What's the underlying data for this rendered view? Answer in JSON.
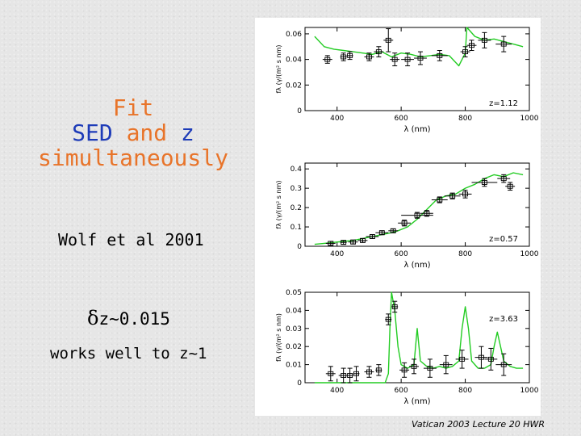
{
  "slide": {
    "title_fit": "Fit",
    "title_sed": "SED",
    "title_and": "and",
    "title_z": "z",
    "title_simultaneously": "simultaneously",
    "citation": "Wolf et al 2001",
    "delta_symbol": "δ",
    "delta_text": "z~0.015",
    "works_note": "works well to z~1",
    "footer": "Vatican 2003 Lecture 20 HWR"
  },
  "colors": {
    "title_blue": "#1d3bb8",
    "title_orange": "#e8742a",
    "model_green": "#22cc22",
    "data_black": "#000000"
  },
  "chart_data": [
    {
      "type": "line",
      "redshift_label": "z=1.12",
      "xlabel": "λ (nm)",
      "ylabel": "fλ (γ/(m² s nm)",
      "xlim": [
        300,
        1000
      ],
      "ylim": [
        0,
        0.065
      ],
      "xticks": [
        "400",
        "600",
        "800",
        "1000"
      ],
      "yticks": [
        "0",
        "0.02",
        "0.04",
        "0.06"
      ],
      "model_series": {
        "name": "",
        "x": [
          330,
          360,
          390,
          420,
          450,
          480,
          510,
          540,
          570,
          600,
          630,
          660,
          690,
          720,
          750,
          780,
          800,
          805,
          830,
          860,
          890,
          920,
          950,
          980
        ],
        "y": [
          0.058,
          0.05,
          0.048,
          0.047,
          0.046,
          0.045,
          0.044,
          0.046,
          0.042,
          0.045,
          0.044,
          0.042,
          0.043,
          0.044,
          0.043,
          0.035,
          0.045,
          0.065,
          0.058,
          0.055,
          0.056,
          0.054,
          0.052,
          0.05
        ]
      },
      "observations": {
        "x": [
          370,
          420,
          440,
          500,
          530,
          560,
          580,
          620,
          660,
          720,
          800,
          820,
          860,
          920
        ],
        "y": [
          0.04,
          0.042,
          0.043,
          0.042,
          0.046,
          0.055,
          0.04,
          0.04,
          0.041,
          0.043,
          0.046,
          0.051,
          0.055,
          0.052
        ],
        "x_err": [
          15,
          10,
          10,
          15,
          15,
          15,
          15,
          20,
          20,
          25,
          15,
          15,
          20,
          25
        ],
        "y_err": [
          0.003,
          0.003,
          0.003,
          0.003,
          0.004,
          0.009,
          0.005,
          0.005,
          0.005,
          0.004,
          0.004,
          0.004,
          0.006,
          0.006
        ]
      }
    },
    {
      "type": "line",
      "redshift_label": "z=0.57",
      "xlabel": "λ (nm)",
      "ylabel": "fλ (γ/(m² s nm)",
      "xlim": [
        300,
        1000
      ],
      "ylim": [
        0,
        0.43
      ],
      "xticks": [
        "400",
        "600",
        "800",
        "1000"
      ],
      "yticks": [
        "0",
        "0.1",
        "0.2",
        "0.3",
        "0.4"
      ],
      "model_series": {
        "name": "",
        "x": [
          330,
          360,
          390,
          420,
          450,
          480,
          510,
          540,
          570,
          590,
          620,
          650,
          680,
          710,
          740,
          770,
          800,
          830,
          860,
          890,
          920,
          950,
          980
        ],
        "y": [
          0.01,
          0.015,
          0.02,
          0.025,
          0.03,
          0.04,
          0.05,
          0.06,
          0.07,
          0.08,
          0.1,
          0.14,
          0.19,
          0.24,
          0.26,
          0.27,
          0.3,
          0.32,
          0.35,
          0.37,
          0.36,
          0.38,
          0.37
        ]
      },
      "observations": {
        "x": [
          380,
          420,
          450,
          480,
          510,
          540,
          575,
          610,
          650,
          680,
          720,
          760,
          800,
          860,
          920,
          940
        ],
        "y": [
          0.015,
          0.02,
          0.022,
          0.03,
          0.05,
          0.07,
          0.08,
          0.12,
          0.16,
          0.17,
          0.24,
          0.26,
          0.27,
          0.33,
          0.35,
          0.31
        ],
        "x_err": [
          15,
          10,
          15,
          15,
          20,
          20,
          15,
          20,
          50,
          20,
          25,
          25,
          20,
          40,
          20,
          15
        ],
        "y_err": [
          0.01,
          0.01,
          0.01,
          0.01,
          0.01,
          0.01,
          0.01,
          0.015,
          0.015,
          0.015,
          0.015,
          0.015,
          0.02,
          0.02,
          0.02,
          0.02
        ]
      }
    },
    {
      "type": "line",
      "redshift_label": "z=3.63",
      "xlabel": "λ (nm)",
      "ylabel": "fλ (γ/(m² s nm)",
      "xlim": [
        300,
        1000
      ],
      "ylim": [
        0,
        0.05
      ],
      "xticks": [
        "400",
        "600",
        "800",
        "1000"
      ],
      "yticks": [
        "0",
        "0.01",
        "0.02",
        "0.03",
        "0.04",
        "0.05"
      ],
      "model_series": {
        "name": "",
        "x": [
          330,
          400,
          480,
          550,
          560,
          565,
          570,
          580,
          590,
          600,
          620,
          640,
          650,
          660,
          680,
          700,
          720,
          740,
          760,
          780,
          790,
          800,
          810,
          820,
          840,
          860,
          880,
          890,
          900,
          910,
          920,
          940,
          960,
          980
        ],
        "y": [
          0.0,
          0.0,
          0.0,
          0.0,
          0.005,
          0.03,
          0.05,
          0.04,
          0.02,
          0.01,
          0.008,
          0.01,
          0.03,
          0.012,
          0.009,
          0.008,
          0.009,
          0.008,
          0.009,
          0.012,
          0.03,
          0.042,
          0.03,
          0.012,
          0.008,
          0.008,
          0.01,
          0.02,
          0.028,
          0.02,
          0.012,
          0.009,
          0.008,
          0.008
        ]
      },
      "observations": {
        "x": [
          380,
          420,
          440,
          460,
          500,
          530,
          560,
          580,
          610,
          640,
          690,
          740,
          790,
          850,
          880,
          920
        ],
        "y": [
          0.005,
          0.004,
          0.004,
          0.005,
          0.006,
          0.007,
          0.035,
          0.042,
          0.007,
          0.009,
          0.008,
          0.01,
          0.013,
          0.014,
          0.013,
          0.01
        ],
        "x_err": [
          15,
          15,
          10,
          10,
          15,
          10,
          10,
          10,
          15,
          15,
          20,
          20,
          20,
          20,
          20,
          25
        ],
        "y_err": [
          0.004,
          0.004,
          0.004,
          0.004,
          0.003,
          0.003,
          0.003,
          0.003,
          0.004,
          0.004,
          0.005,
          0.005,
          0.005,
          0.006,
          0.006,
          0.006
        ]
      }
    }
  ]
}
